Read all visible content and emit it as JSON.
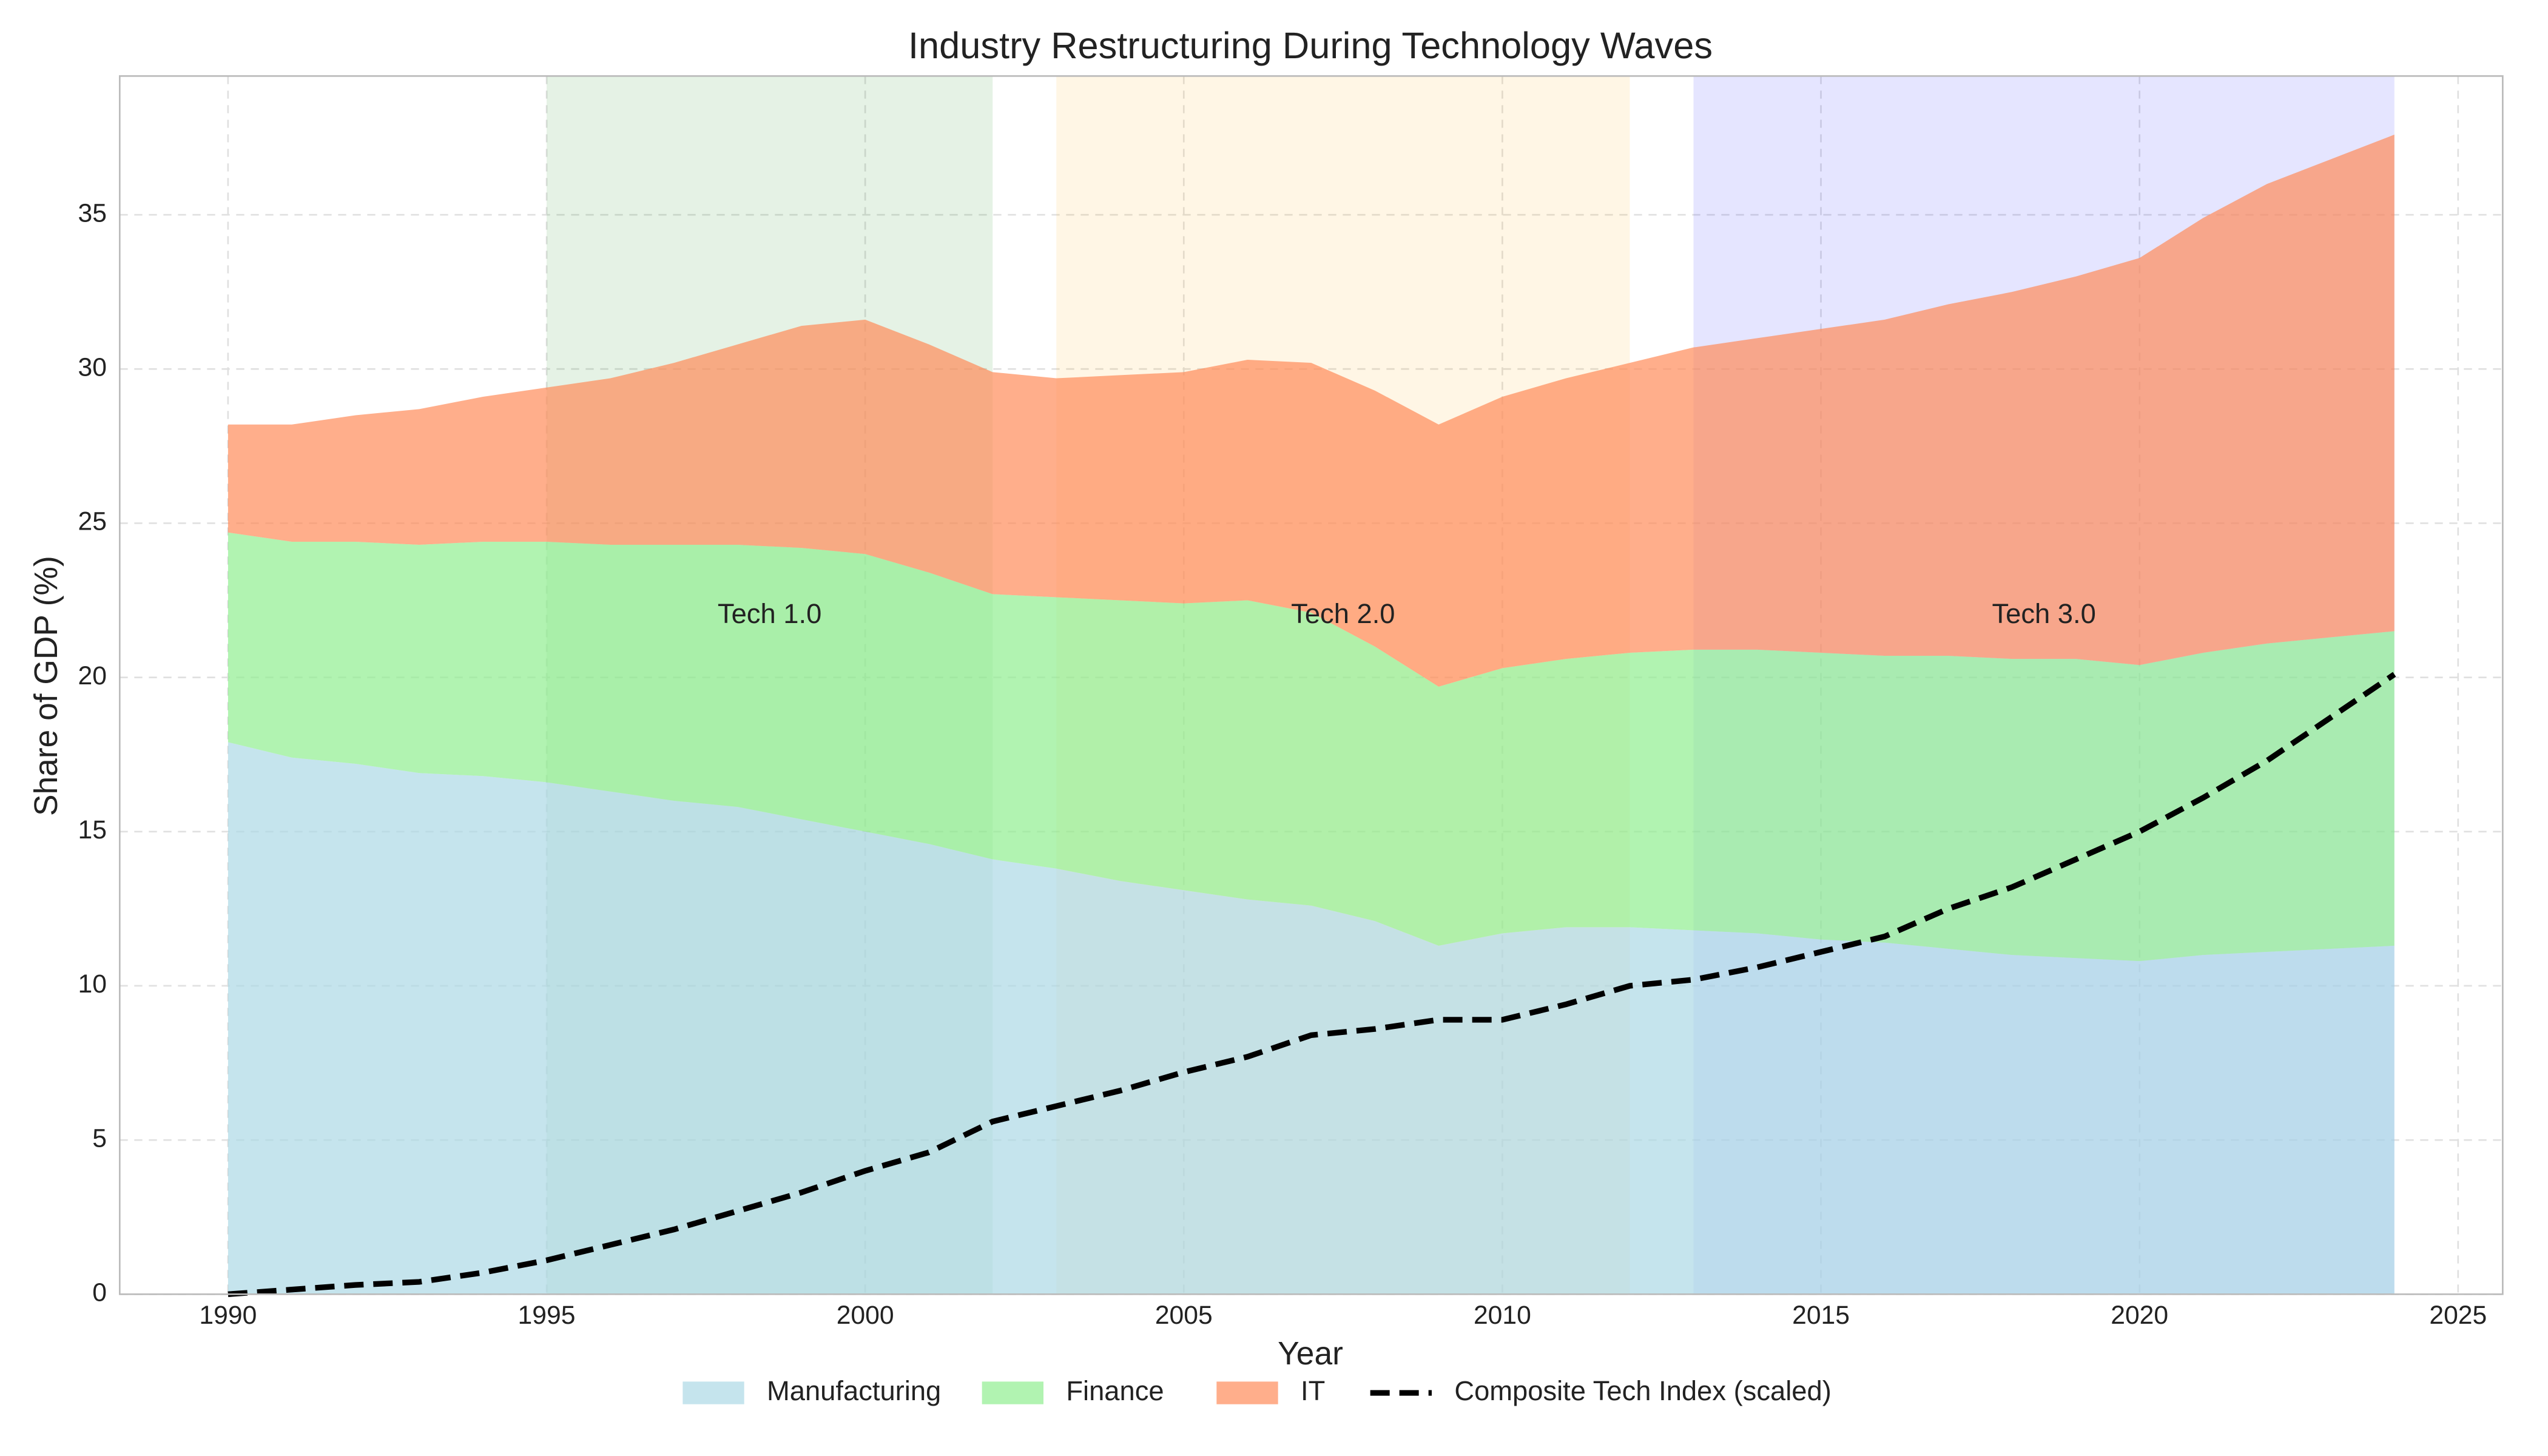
{
  "chart_data": {
    "type": "stacked-area",
    "title": "Industry Restructuring During Technology Waves",
    "x_label": "Year",
    "y_label": "Share of GDP (%)",
    "x": [
      1990,
      1991,
      1992,
      1993,
      1994,
      1995,
      1996,
      1997,
      1998,
      1999,
      2000,
      2001,
      2002,
      2003,
      2004,
      2005,
      2006,
      2007,
      2008,
      2009,
      2010,
      2011,
      2012,
      2013,
      2014,
      2015,
      2016,
      2017,
      2018,
      2019,
      2020,
      2021,
      2022,
      2023,
      2024
    ],
    "series": [
      {
        "name": "Manufacturing",
        "color": "#add8e6",
        "values": [
          17.9,
          17.4,
          17.2,
          16.9,
          16.8,
          16.6,
          16.3,
          16.0,
          15.8,
          15.4,
          15.0,
          14.6,
          14.1,
          13.8,
          13.4,
          13.1,
          12.8,
          12.6,
          12.1,
          11.3,
          11.7,
          11.9,
          11.9,
          11.8,
          11.7,
          11.5,
          11.4,
          11.2,
          11.0,
          10.9,
          10.8,
          11.0,
          11.1,
          11.2,
          11.3
        ]
      },
      {
        "name": "Finance",
        "color": "#90ee90",
        "values": [
          6.8,
          7.0,
          7.2,
          7.4,
          7.6,
          7.8,
          8.0,
          8.3,
          8.5,
          8.8,
          9.0,
          8.8,
          8.6,
          8.8,
          9.1,
          9.3,
          9.7,
          9.5,
          8.9,
          8.4,
          8.6,
          8.7,
          8.9,
          9.1,
          9.2,
          9.3,
          9.3,
          9.5,
          9.6,
          9.7,
          9.6,
          9.8,
          10.0,
          10.1,
          10.2
        ]
      },
      {
        "name": "IT",
        "color": "#ff8c5a",
        "values": [
          3.5,
          3.8,
          4.1,
          4.4,
          4.7,
          5.0,
          5.4,
          5.9,
          6.5,
          7.2,
          7.6,
          7.4,
          7.2,
          7.1,
          7.3,
          7.5,
          7.8,
          8.1,
          8.3,
          8.5,
          8.8,
          9.1,
          9.4,
          9.8,
          10.1,
          10.5,
          10.9,
          11.4,
          11.9,
          12.4,
          13.2,
          14.1,
          14.9,
          15.5,
          16.1
        ]
      },
      {
        "name": "Composite Tech Index (scaled)",
        "color": "#000000",
        "type": "line",
        "values": [
          0,
          0.15,
          0.3,
          0.4,
          0.7,
          1.1,
          1.6,
          2.1,
          2.7,
          3.3,
          4.0,
          4.6,
          5.6,
          6.1,
          6.6,
          7.2,
          7.7,
          8.4,
          8.6,
          8.9,
          8.9,
          9.4,
          10.0,
          10.2,
          10.6,
          11.1,
          11.6,
          12.5,
          13.2,
          14.1,
          15.0,
          16.1,
          17.3,
          18.7,
          20.1
        ]
      }
    ],
    "spans": [
      {
        "label": "Tech 1.0",
        "start": 1995,
        "end": 2002,
        "color": "#008000",
        "label_y": 22
      },
      {
        "label": "Tech 2.0",
        "start": 2003,
        "end": 2012,
        "color": "#ffa500",
        "label_y": 22
      },
      {
        "label": "Tech 3.0",
        "start": 2013,
        "end": 2024,
        "color": "#0000ff",
        "label_y": 22
      }
    ],
    "xlim": [
      1988.3,
      2025.7
    ],
    "ylim": [
      0,
      39.5
    ],
    "xticks": [
      1990,
      1995,
      2000,
      2005,
      2010,
      2015,
      2020,
      2025
    ],
    "yticks": [
      0,
      5,
      10,
      15,
      20,
      25,
      30,
      35
    ],
    "grid": true,
    "legend": "bottom"
  }
}
